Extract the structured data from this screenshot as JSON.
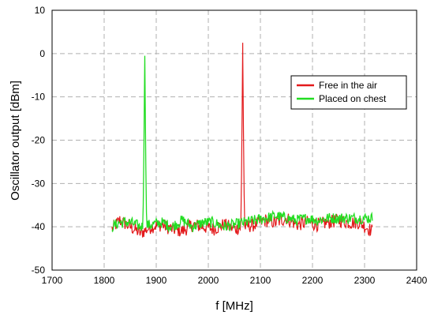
{
  "chart_data": {
    "type": "line",
    "xlabel": "f [MHz]",
    "ylabel": "Oscillator output [dBm]",
    "xlim": [
      1700,
      2400
    ],
    "ylim": [
      -50,
      10
    ],
    "xticks": [
      1700,
      1800,
      1900,
      2000,
      2100,
      2200,
      2300,
      2400
    ],
    "yticks": [
      10,
      0,
      -10,
      -20,
      -30,
      -40,
      -50
    ],
    "grid": true,
    "legend_position": "top-right",
    "noise_floor": {
      "x": [
        1815,
        1830,
        1850,
        1870,
        1890,
        1910,
        1930,
        1950,
        1970,
        1990,
        2010,
        2030,
        2050,
        2070,
        2090,
        2110,
        2130,
        2150,
        2170,
        2190,
        2210,
        2230,
        2250,
        2270,
        2290,
        2315
      ],
      "y_free": [
        -40.5,
        -38.5,
        -40,
        -41.5,
        -40,
        -39.5,
        -40.5,
        -41,
        -39.5,
        -40,
        -40.5,
        -39.5,
        -40.5,
        -40,
        -39.5,
        -38.5,
        -39,
        -38,
        -39.5,
        -39,
        -39.5,
        -39,
        -38.5,
        -39,
        -39,
        -41
      ],
      "y_chest": [
        -40,
        -39,
        -39,
        -40,
        -39.5,
        -39,
        -40,
        -38.5,
        -40,
        -39,
        -39,
        -40,
        -39.5,
        -39,
        -38.5,
        -38,
        -37.5,
        -38,
        -38.5,
        -38,
        -38.5,
        -38,
        -38,
        -38,
        -38,
        -38
      ]
    },
    "series": [
      {
        "name": "Free in the air",
        "color": "#e31a1c",
        "peak_x": 2066,
        "peak_y": 2.5
      },
      {
        "name": "Placed on chest",
        "color": "#22dd22",
        "peak_x": 1878,
        "peak_y": -0.5
      }
    ]
  }
}
